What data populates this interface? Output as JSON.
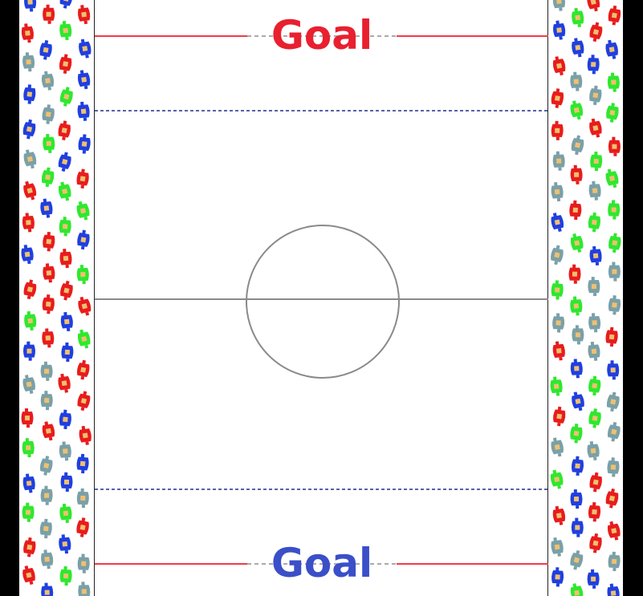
{
  "field": {
    "goal_top": {
      "label": "Goal",
      "color": "#e8202f"
    },
    "goal_bottom": {
      "label": "Goal",
      "color": "#3a4fc8"
    },
    "goal_line_color": "#ef3b49",
    "goal_mouth_color": "#aaaaaa",
    "blue_line_color": "#1f2f8f",
    "center_line_color": "#8a8a8a"
  },
  "crowd": {
    "player_colors": [
      "#1f3fe0",
      "#e81c1c",
      "#2ee82e",
      "#7aa0a8"
    ],
    "head_color": "#f0c070"
  }
}
